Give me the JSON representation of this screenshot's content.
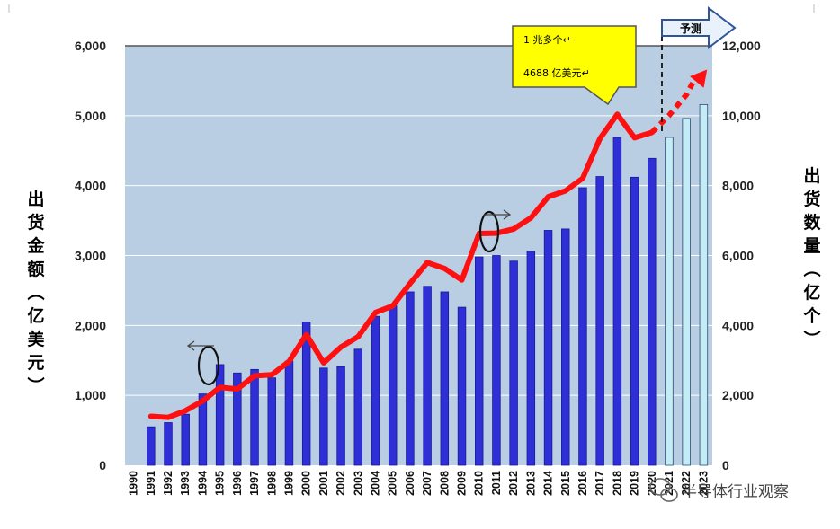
{
  "chart_data": {
    "type": "bar",
    "categories": [
      "1990",
      "1991",
      "1992",
      "1993",
      "1994",
      "1995",
      "1996",
      "1997",
      "1998",
      "1999",
      "2000",
      "2001",
      "2002",
      "2003",
      "2004",
      "2005",
      "2006",
      "2007",
      "2008",
      "2009",
      "2010",
      "2011",
      "2012",
      "2013",
      "2014",
      "2015",
      "2016",
      "2017",
      "2018",
      "2019",
      "2020",
      "2021",
      "2022",
      "2023"
    ],
    "series": [
      {
        "type": "bar",
        "axis": "left",
        "color": "#2f2fd8",
        "forecast_color": "#c4ecf4",
        "values": [
          null,
          550,
          610,
          730,
          1020,
          1440,
          1320,
          1370,
          1250,
          1490,
          2050,
          1390,
          1410,
          1660,
          2130,
          2280,
          2480,
          2560,
          2480,
          2260,
          2980,
          3000,
          2920,
          3060,
          3360,
          3380,
          3970,
          4130,
          4690,
          4120,
          4390,
          4690,
          4960,
          5160
        ],
        "forecast_from": "2021"
      },
      {
        "type": "line",
        "axis": "right",
        "color": "#ff1010",
        "values": [
          null,
          1400,
          1370,
          1560,
          1840,
          2230,
          2180,
          2560,
          2590,
          2970,
          3740,
          2930,
          3380,
          3680,
          4370,
          4560,
          5200,
          5800,
          5630,
          5300,
          6630,
          6640,
          6760,
          7080,
          7680,
          7850,
          8210,
          9350,
          10040,
          9370,
          9520,
          null,
          null,
          null
        ],
        "forecast": [
          [
            2020,
            9520
          ],
          [
            2021,
            10010
          ],
          [
            2022,
            10600
          ],
          [
            2023,
            11200
          ]
        ]
      }
    ],
    "y_left": {
      "ylim": [
        0,
        6000
      ],
      "ticks": [
        "0",
        "1,000",
        "2,000",
        "3,000",
        "4,000",
        "5,000",
        "6,000"
      ]
    },
    "y_right": {
      "ylim": [
        0,
        12000
      ],
      "ticks": [
        "0",
        "2,000",
        "4,000",
        "6,000",
        "8,000",
        "10,000",
        "12,000"
      ]
    },
    "ylabel_left": "出货金额（亿美元）",
    "ylabel_right": "出货数量（亿个）",
    "grid": true,
    "annotations": {
      "callout_line1": "1 兆多个↵",
      "callout_line2": "4688 亿美元↵",
      "forecast_label": "予测"
    }
  },
  "watermark": {
    "text": "半导体行业观察",
    "icon": "wechat-icon"
  },
  "colors": {
    "plot_bg": "#b9cde3",
    "bar": "#2f2fd8",
    "bar_forecast": "#c4ecf4",
    "line": "#ff1010",
    "callout_bg": "#ffff00"
  }
}
